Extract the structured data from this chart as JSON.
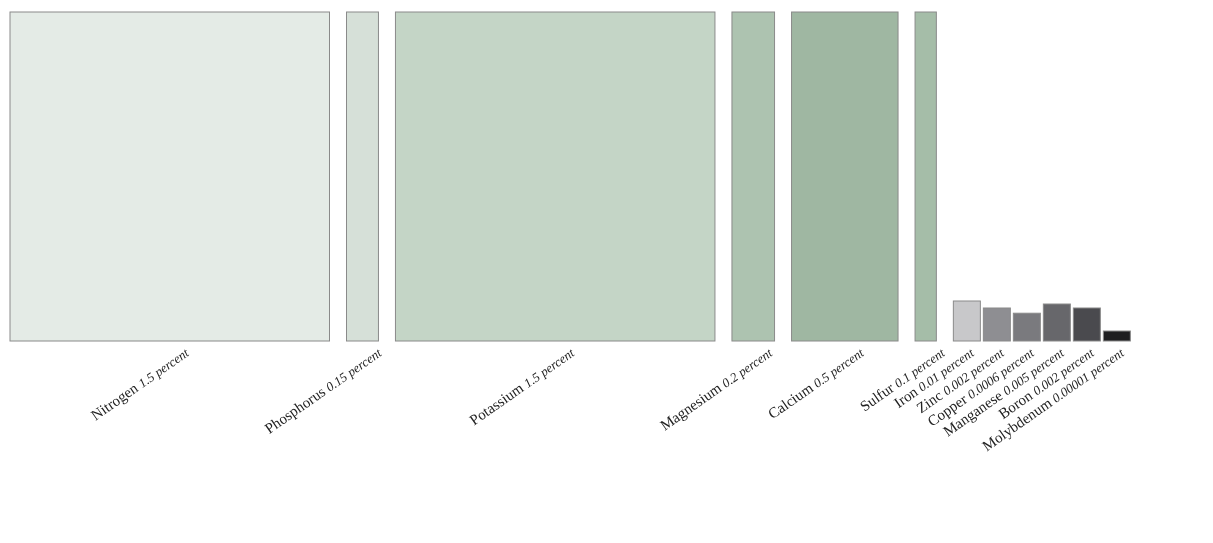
{
  "chart_data": {
    "type": "other",
    "categories": [
      "Nitrogen",
      "Phosphorus",
      "Potassium",
      "Magnesium",
      "Calcium",
      "Sulfur",
      "Iron",
      "Zinc",
      "Copper",
      "Manganese",
      "Boron",
      "Molybdenum"
    ],
    "values": [
      1.5,
      0.15,
      1.5,
      0.2,
      0.5,
      0.1,
      0.01,
      0.002,
      0.0006,
      0.005,
      0.002,
      1e-05
    ],
    "value_labels": [
      "1.5 percent",
      "0.15 percent",
      "1.5 percent",
      "0.2 percent",
      "0.5 percent",
      "0.1 percent",
      "0.01 percent",
      "0.002 percent",
      "0.0006 percent",
      "0.005 percent",
      "0.002 percent",
      "0.00001 percent"
    ],
    "colors": [
      "#e4ebe6",
      "#d6e0d8",
      "#c4d5c6",
      "#adc3b0",
      "#9fb7a2",
      "#a5bda8",
      "#c8c8ca",
      "#8e8e92",
      "#7a7a7e",
      "#67676b",
      "#4a4a4e",
      "#1e1e20"
    ]
  }
}
